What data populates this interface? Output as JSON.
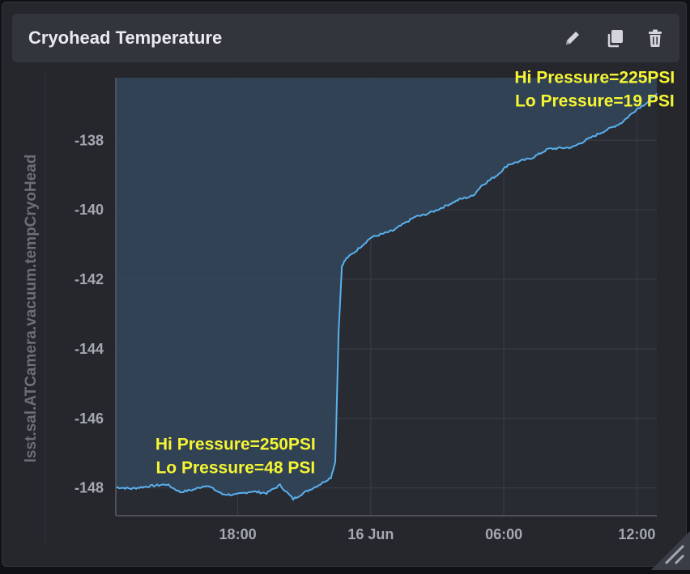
{
  "panel": {
    "title": "Cryohead Temperature",
    "actions": [
      {
        "name": "edit-button",
        "icon": "pencil-icon"
      },
      {
        "name": "duplicate-button",
        "icon": "copy-icon"
      },
      {
        "name": "delete-button",
        "icon": "trash-icon"
      }
    ]
  },
  "chart_data": {
    "type": "area",
    "ylabel": "lsst.sal.ATCamera.vacuum.tempCryoHead",
    "xlabel": "",
    "x_ticks": [
      "18:00",
      "16 Jun",
      "06:00",
      "12:00"
    ],
    "x_tick_hours": [
      18,
      24,
      30,
      36
    ],
    "xlim_hours": [
      12.5,
      36.9
    ],
    "y_ticks": [
      -138,
      -140,
      -142,
      -144,
      -146,
      -148
    ],
    "ylim": [
      -148.8,
      -136.2
    ],
    "grid": true,
    "colors": {
      "line": "#5ab0ee",
      "fill": "#33475a"
    },
    "series": [
      {
        "x_hours": [
          12.5,
          13.2,
          14.0,
          14.8,
          15.4,
          16.0,
          16.6,
          17.3,
          17.9,
          18.6,
          19.3,
          19.9,
          20.5,
          21.1,
          21.7,
          22.2,
          22.4,
          22.55,
          22.7,
          22.9,
          23.3,
          24.0,
          25.0,
          26.0,
          26.4,
          27.0,
          28.0,
          28.6,
          29.0,
          29.7,
          30.2,
          31.3,
          32.0,
          33.1,
          34.0,
          35.3,
          36.0,
          36.5,
          36.9
        ],
        "values": [
          -147.98,
          -148.02,
          -147.95,
          -147.9,
          -148.12,
          -148.05,
          -147.92,
          -148.18,
          -148.2,
          -148.1,
          -148.15,
          -147.92,
          -148.32,
          -148.1,
          -147.9,
          -147.7,
          -147.25,
          -143.5,
          -141.6,
          -141.4,
          -141.2,
          -140.8,
          -140.6,
          -140.2,
          -140.15,
          -140.0,
          -139.7,
          -139.6,
          -139.3,
          -139.0,
          -138.7,
          -138.5,
          -138.25,
          -138.2,
          -137.9,
          -137.5,
          -137.1,
          -136.9,
          -136.65
        ]
      }
    ],
    "annotations": [
      {
        "lines": [
          "Hi Pressure=250PSI",
          "Lo Pressure=48 PSI"
        ],
        "x_hours": 17.9,
        "y": -146.9
      },
      {
        "lines": [
          "Hi Pressure=225PSI",
          "Lo Pressure=19 PSI"
        ],
        "x_hours": 34.1,
        "y": -136.35
      }
    ]
  }
}
